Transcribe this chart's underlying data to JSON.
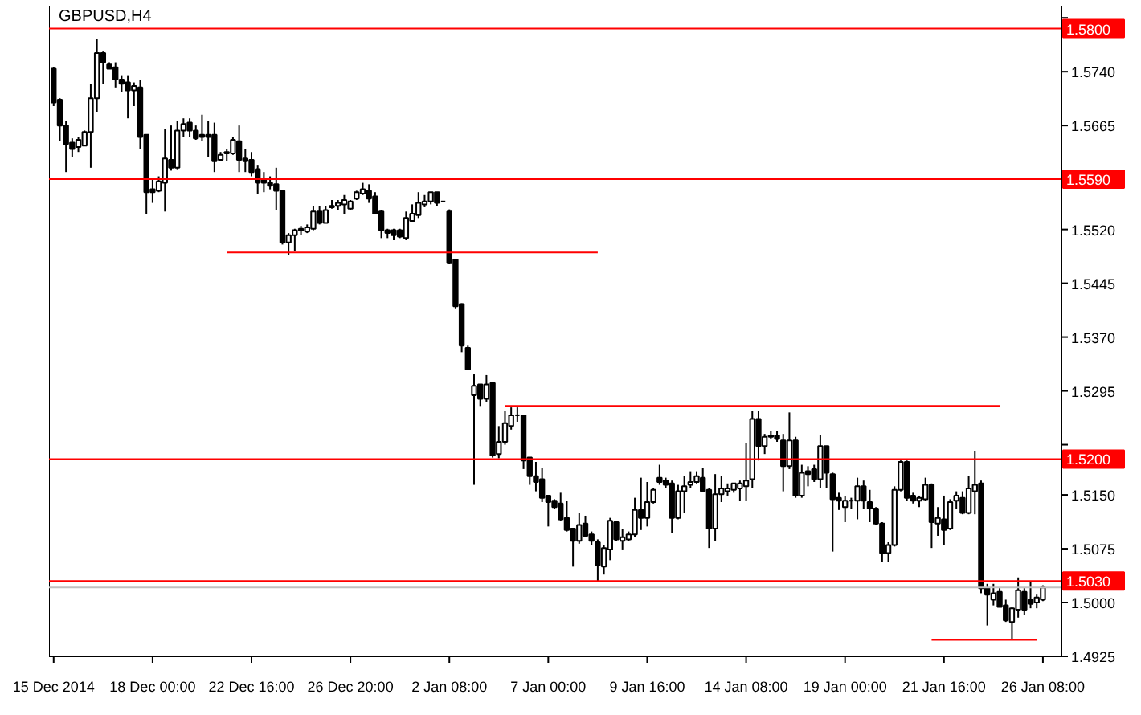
{
  "chart_data": {
    "type": "candlestick",
    "title": "GBPUSD,H4",
    "categories": [
      "15 Dec 2014",
      null,
      null,
      null,
      null,
      null,
      null,
      null,
      null,
      null,
      null,
      null,
      null,
      null,
      null,
      null,
      "18 Dec 00:00",
      null,
      null,
      null,
      null,
      null,
      null,
      null,
      null,
      null,
      null,
      null,
      null,
      null,
      null,
      null,
      "22 Dec 16:00",
      null,
      null,
      null,
      null,
      null,
      null,
      null,
      null,
      null,
      null,
      null,
      null,
      null,
      null,
      null,
      "26 Dec 20:00",
      null,
      null,
      null,
      null,
      null,
      null,
      null,
      null,
      null,
      null,
      null,
      null,
      null,
      null,
      null,
      "2 Jan 08:00",
      null,
      null,
      null,
      null,
      null,
      null,
      null,
      null,
      null,
      null,
      null,
      null,
      null,
      null,
      null,
      "7 Jan 00:00",
      null,
      null,
      null,
      null,
      null,
      null,
      null,
      null,
      null,
      null,
      null,
      null,
      null,
      null,
      null,
      "9 Jan 16:00",
      null,
      null,
      null,
      null,
      null,
      null,
      null,
      null,
      null,
      null,
      null,
      null,
      null,
      null,
      null,
      "14 Jan 08:00",
      null,
      null,
      null,
      null,
      null,
      null,
      null,
      null,
      null,
      null,
      null,
      null,
      null,
      null,
      null,
      "19 Jan 00:00",
      null,
      null,
      null,
      null,
      null,
      null,
      null,
      null,
      null,
      null,
      null,
      null,
      null,
      null,
      null,
      "21 Jan 16:00",
      null,
      null,
      null,
      null,
      null,
      null,
      null,
      null,
      null,
      null,
      null,
      null,
      null,
      null,
      null,
      "26 Jan 08:00"
    ],
    "ylim": [
      1.4925,
      1.5832
    ],
    "yticks": [
      {
        "value": 1.5815,
        "label": null
      },
      {
        "value": 1.574,
        "label": "1.5740"
      },
      {
        "value": 1.5665,
        "label": "1.5665"
      },
      {
        "value": 1.552,
        "label": "1.5520"
      },
      {
        "value": 1.5445,
        "label": "1.5445"
      },
      {
        "value": 1.537,
        "label": "1.5370"
      },
      {
        "value": 1.5295,
        "label": "1.5295"
      },
      {
        "value": 1.522,
        "label": null
      },
      {
        "value": 1.515,
        "label": "1.5150"
      },
      {
        "value": 1.5075,
        "label": "1.5075"
      },
      {
        "value": 1.5,
        "label": "1.5000"
      },
      {
        "value": 1.4925,
        "label": "1.4925"
      }
    ],
    "ohlc": [
      [
        1.5744,
        1.5746,
        1.5692,
        1.5697
      ],
      [
        1.5701,
        1.5703,
        1.5643,
        1.5665
      ],
      [
        1.5665,
        1.5671,
        1.56,
        1.5639
      ],
      [
        1.5641,
        1.5647,
        1.5621,
        1.5632
      ],
      [
        1.5635,
        1.5649,
        1.5628,
        1.5645
      ],
      [
        1.5637,
        1.5658,
        1.5637,
        1.5656
      ],
      [
        1.5656,
        1.5723,
        1.5606,
        1.5703
      ],
      [
        1.5703,
        1.5785,
        1.5684,
        1.5766
      ],
      [
        1.5766,
        1.5768,
        1.5723,
        1.5753
      ],
      [
        1.575,
        1.5753,
        1.5744,
        1.5744
      ],
      [
        1.5746,
        1.5753,
        1.5718,
        1.5729
      ],
      [
        1.5729,
        1.5735,
        1.5712,
        1.5723
      ],
      [
        1.5725,
        1.5735,
        1.5675,
        1.5714
      ],
      [
        1.5714,
        1.5725,
        1.5692,
        1.572
      ],
      [
        1.5718,
        1.5729,
        1.5632,
        1.5649
      ],
      [
        1.5652,
        1.5652,
        1.5542,
        1.5572
      ],
      [
        1.5576,
        1.5589,
        1.5557,
        1.5572
      ],
      [
        1.5574,
        1.5594,
        1.5572,
        1.5587
      ],
      [
        1.5585,
        1.566,
        1.5545,
        1.5619
      ],
      [
        1.5617,
        1.5665,
        1.5602,
        1.5606
      ],
      [
        1.5606,
        1.5671,
        1.5604,
        1.5658
      ],
      [
        1.5658,
        1.5675,
        1.5649,
        1.5667
      ],
      [
        1.5669,
        1.5675,
        1.5649,
        1.5658
      ],
      [
        1.5658,
        1.5665,
        1.5645,
        1.5647
      ],
      [
        1.5652,
        1.568,
        1.5643,
        1.5649
      ],
      [
        1.5652,
        1.5671,
        1.5621,
        1.5649
      ],
      [
        1.5652,
        1.5669,
        1.56,
        1.5615
      ],
      [
        1.5617,
        1.5628,
        1.5615,
        1.5624
      ],
      [
        1.5626,
        1.5632,
        1.5615,
        1.5628
      ],
      [
        1.5626,
        1.5649,
        1.5624,
        1.5645
      ],
      [
        1.5643,
        1.5665,
        1.56,
        1.5617
      ],
      [
        1.5619,
        1.5632,
        1.56,
        1.5615
      ],
      [
        1.5617,
        1.5628,
        1.5594,
        1.56
      ],
      [
        1.5604,
        1.5609,
        1.557,
        1.5585
      ],
      [
        1.5589,
        1.56,
        1.5572,
        1.5585
      ],
      [
        1.5585,
        1.5594,
        1.5576,
        1.5581
      ],
      [
        1.5583,
        1.5606,
        1.5547,
        1.5574
      ],
      [
        1.5574,
        1.5574,
        1.5499,
        1.5502
      ],
      [
        1.5502,
        1.5515,
        1.5484,
        1.5512
      ],
      [
        1.5512,
        1.5521,
        1.549,
        1.5519
      ],
      [
        1.5519,
        1.5525,
        1.5512,
        1.5521
      ],
      [
        1.5517,
        1.5527,
        1.5515,
        1.5523
      ],
      [
        1.5521,
        1.5553,
        1.5519,
        1.5545
      ],
      [
        1.5545,
        1.5553,
        1.5527,
        1.5529
      ],
      [
        1.5529,
        1.5553,
        1.5529,
        1.5547
      ],
      [
        1.5551,
        1.5561,
        1.5549,
        1.5553
      ],
      [
        1.5553,
        1.5561,
        1.5547,
        1.5557
      ],
      [
        1.5555,
        1.5568,
        1.5542,
        1.5561
      ],
      [
        1.5549,
        1.5561,
        1.5547,
        1.5559
      ],
      [
        1.5563,
        1.5574,
        1.5561,
        1.5572
      ],
      [
        1.557,
        1.5585,
        1.5568,
        1.5576
      ],
      [
        1.5574,
        1.5583,
        1.5557,
        1.5563
      ],
      [
        1.5566,
        1.5572,
        1.5542,
        1.5542
      ],
      [
        1.5545,
        1.5547,
        1.5508,
        1.5519
      ],
      [
        1.5519,
        1.5521,
        1.5508,
        1.5515
      ],
      [
        1.5519,
        1.5521,
        1.5505,
        1.5512
      ],
      [
        1.5519,
        1.5521,
        1.5508,
        1.551
      ],
      [
        1.5508,
        1.5545,
        1.5505,
        1.5536
      ],
      [
        1.5532,
        1.5555,
        1.5532,
        1.5542
      ],
      [
        1.554,
        1.5572,
        1.5536,
        1.5557
      ],
      [
        1.5555,
        1.5568,
        1.5551,
        1.5559
      ],
      [
        1.5559,
        1.5572,
        1.5555,
        1.5572
      ],
      [
        1.5572,
        1.5572,
        1.5553,
        1.5557
      ],
      [
        1.5559,
        1.5559,
        1.5559,
        1.5559
      ],
      [
        1.5545,
        1.5548,
        1.5472,
        1.5474
      ],
      [
        1.5478,
        1.5478,
        1.5409,
        1.5413
      ],
      [
        1.5416,
        1.5417,
        1.5349,
        1.5358
      ],
      [
        1.5355,
        1.5358,
        1.5325,
        1.5325
      ],
      [
        1.5289,
        1.5318,
        1.5164,
        1.5302
      ],
      [
        1.5304,
        1.5304,
        1.5274,
        1.5284
      ],
      [
        1.5284,
        1.5317,
        1.528,
        1.5304
      ],
      [
        1.5306,
        1.5306,
        1.5202,
        1.5205
      ],
      [
        1.5207,
        1.5246,
        1.5201,
        1.5224
      ],
      [
        1.5224,
        1.5267,
        1.522,
        1.525
      ],
      [
        1.5246,
        1.5272,
        1.5241,
        1.5261
      ],
      [
        1.5261,
        1.5272,
        1.5252,
        1.5261
      ],
      [
        1.5261,
        1.5261,
        1.5186,
        1.5198
      ],
      [
        1.5202,
        1.5202,
        1.5164,
        1.5176
      ],
      [
        1.5176,
        1.5196,
        1.5155,
        1.5168
      ],
      [
        1.5172,
        1.5188,
        1.514,
        1.5146
      ],
      [
        1.5149,
        1.5149,
        1.5106,
        1.514
      ],
      [
        1.5142,
        1.5144,
        1.5131,
        1.5133
      ],
      [
        1.5138,
        1.5153,
        1.5114,
        1.5116
      ],
      [
        1.5118,
        1.5142,
        1.5099,
        1.5101
      ],
      [
        1.5103,
        1.5103,
        1.505,
        1.5086
      ],
      [
        1.5086,
        1.5125,
        1.5082,
        1.5108
      ],
      [
        1.511,
        1.5121,
        1.5091,
        1.5093
      ],
      [
        1.5095,
        1.5099,
        1.508,
        1.5086
      ],
      [
        1.5084,
        1.5088,
        1.503,
        1.5052
      ],
      [
        1.505,
        1.508,
        1.5039,
        1.5076
      ],
      [
        1.5074,
        1.5118,
        1.5059,
        1.5114
      ],
      [
        1.5112,
        1.5114,
        1.5086,
        1.5088
      ],
      [
        1.5086,
        1.5103,
        1.5074,
        1.5091
      ],
      [
        1.5088,
        1.5099,
        1.5086,
        1.5095
      ],
      [
        1.5095,
        1.5146,
        1.5091,
        1.5129
      ],
      [
        1.5129,
        1.5174,
        1.5101,
        1.5118
      ],
      [
        1.5118,
        1.5168,
        1.5106,
        1.514
      ],
      [
        1.514,
        1.5159,
        1.5138,
        1.5157
      ],
      [
        1.5174,
        1.5192,
        1.5164,
        1.5168
      ],
      [
        1.517,
        1.5174,
        1.5159,
        1.5164
      ],
      [
        1.5166,
        1.517,
        1.5097,
        1.5118
      ],
      [
        1.5118,
        1.5164,
        1.5116,
        1.5155
      ],
      [
        1.5155,
        1.5176,
        1.5125,
        1.5162
      ],
      [
        1.5164,
        1.5183,
        1.5159,
        1.5168
      ],
      [
        1.5168,
        1.5183,
        1.5166,
        1.5176
      ],
      [
        1.5174,
        1.5188,
        1.5155,
        1.5155
      ],
      [
        1.5157,
        1.5159,
        1.5076,
        1.5103
      ],
      [
        1.5103,
        1.5179,
        1.5086,
        1.5151
      ],
      [
        1.5151,
        1.5176,
        1.514,
        1.5159
      ],
      [
        1.5155,
        1.5166,
        1.5149,
        1.5159
      ],
      [
        1.5157,
        1.5166,
        1.5153,
        1.5166
      ],
      [
        1.5159,
        1.517,
        1.5142,
        1.5166
      ],
      [
        1.5162,
        1.5222,
        1.5142,
        1.517
      ],
      [
        1.5172,
        1.5267,
        1.5159,
        1.5256
      ],
      [
        1.5256,
        1.5267,
        1.5198,
        1.5218
      ],
      [
        1.5218,
        1.5235,
        1.5207,
        1.5231
      ],
      [
        1.5231,
        1.5239,
        1.5228,
        1.5233
      ],
      [
        1.5233,
        1.5239,
        1.5224,
        1.5228
      ],
      [
        1.5226,
        1.5235,
        1.5155,
        1.519
      ],
      [
        1.519,
        1.5265,
        1.5186,
        1.5226
      ],
      [
        1.5226,
        1.5231,
        1.5146,
        1.5149
      ],
      [
        1.5149,
        1.5192,
        1.5146,
        1.5181
      ],
      [
        1.5183,
        1.519,
        1.5162,
        1.5179
      ],
      [
        1.5186,
        1.5192,
        1.5168,
        1.5172
      ],
      [
        1.5172,
        1.5233,
        1.5159,
        1.5218
      ],
      [
        1.5218,
        1.5218,
        1.5159,
        1.5181
      ],
      [
        1.5179,
        1.5181,
        1.5071,
        1.5144
      ],
      [
        1.5146,
        1.5153,
        1.5129,
        1.5142
      ],
      [
        1.5133,
        1.5149,
        1.5112,
        1.5142
      ],
      [
        1.5142,
        1.5146,
        1.5131,
        1.5142
      ],
      [
        1.5142,
        1.5174,
        1.5116,
        1.5162
      ],
      [
        1.5162,
        1.517,
        1.5131,
        1.5142
      ],
      [
        1.514,
        1.5157,
        1.5112,
        1.5131
      ],
      [
        1.5131,
        1.5133,
        1.5108,
        1.511
      ],
      [
        1.511,
        1.5112,
        1.5056,
        1.5069
      ],
      [
        1.5069,
        1.5084,
        1.5056,
        1.508
      ],
      [
        1.508,
        1.5162,
        1.5078,
        1.5157
      ],
      [
        1.5157,
        1.5198,
        1.5155,
        1.5196
      ],
      [
        1.5196,
        1.5198,
        1.5142,
        1.5146
      ],
      [
        1.5149,
        1.5153,
        1.5138,
        1.5142
      ],
      [
        1.5142,
        1.5149,
        1.5133,
        1.5146
      ],
      [
        1.5144,
        1.5174,
        1.5142,
        1.5164
      ],
      [
        1.5164,
        1.5166,
        1.5076,
        1.5112
      ],
      [
        1.511,
        1.5133,
        1.5093,
        1.5118
      ],
      [
        1.5116,
        1.5149,
        1.508,
        1.5101
      ],
      [
        1.5103,
        1.5144,
        1.5101,
        1.514
      ],
      [
        1.5142,
        1.5155,
        1.5131,
        1.5149
      ],
      [
        1.5146,
        1.5155,
        1.5123,
        1.5125
      ],
      [
        1.5125,
        1.5176,
        1.5123,
        1.5159
      ],
      [
        1.5155,
        1.5211,
        1.5123,
        1.5164
      ],
      [
        1.5166,
        1.517,
        1.5013,
        1.502
      ],
      [
        1.502,
        1.5026,
        1.4968,
        1.5011
      ],
      [
        1.5004,
        1.5026,
        1.4996,
        1.5013
      ],
      [
        1.5015,
        1.502,
        1.4994,
        1.4994
      ],
      [
        1.4996,
        1.5004,
        1.4973,
        1.4975
      ],
      [
        1.4973,
        1.4994,
        1.4949,
        1.4992
      ],
      [
        1.499,
        1.5035,
        1.4979,
        1.5017
      ],
      [
        1.5015,
        1.502,
        1.4983,
        1.499
      ],
      [
        1.5004,
        1.5028,
        1.4992,
        1.4998
      ],
      [
        1.5,
        1.5011,
        1.4992,
        1.5007
      ],
      [
        1.5004,
        1.5024,
        1.5002,
        1.5021
      ]
    ],
    "series": [
      {
        "type": "line",
        "color": "#ff0000",
        "values": [
          null,
          null,
          null,
          null,
          null,
          null,
          null,
          null,
          null,
          null,
          null,
          null,
          null,
          null,
          null,
          null,
          null,
          null,
          null,
          null,
          null,
          null,
          null,
          null,
          null,
          null,
          null,
          null,
          1.5488,
          1.5488,
          1.5488,
          1.5488,
          1.5488,
          1.5488,
          1.5488,
          1.5488,
          1.5488,
          1.5488,
          1.5488,
          1.5488,
          1.5488,
          1.5488,
          1.5488,
          1.5488,
          1.5488,
          1.5488,
          1.5488,
          1.5488,
          1.5488,
          1.5488,
          1.5488,
          1.5488,
          1.5488,
          1.5488,
          1.5488,
          1.5488,
          1.5488,
          1.5488,
          1.5488,
          1.5488,
          1.5488,
          1.5488,
          1.5488,
          1.5488,
          1.5488,
          1.5488,
          1.5488,
          1.5488,
          1.5488,
          1.5488,
          1.5488,
          1.5488,
          1.5488,
          1.5488,
          1.5488,
          1.5488,
          1.5488,
          1.5488,
          1.5488,
          1.5488,
          1.5488,
          1.5488,
          1.5488,
          1.5488,
          1.5488,
          1.5488,
          1.5488,
          1.5488,
          1.5488,
          null,
          null,
          null,
          null,
          null,
          null,
          null,
          null,
          null,
          null,
          null,
          null,
          null,
          null,
          null,
          null,
          null,
          null,
          null,
          null,
          null,
          null,
          null,
          null,
          null,
          null,
          null,
          null,
          null,
          null,
          null,
          null,
          null,
          null,
          null,
          null,
          null,
          null,
          null,
          null,
          null,
          null,
          null,
          null,
          null,
          null,
          null,
          null,
          null,
          null,
          null,
          null,
          null,
          null,
          null,
          null,
          null,
          null,
          null,
          null,
          null,
          null,
          null,
          null,
          null,
          null,
          null,
          null,
          null,
          null,
          null,
          null
        ]
      },
      {
        "type": "line",
        "color": "#ff0000",
        "values": [
          null,
          null,
          null,
          null,
          null,
          null,
          null,
          null,
          null,
          null,
          null,
          null,
          null,
          null,
          null,
          null,
          null,
          null,
          null,
          null,
          null,
          null,
          null,
          null,
          null,
          null,
          null,
          null,
          null,
          null,
          null,
          null,
          null,
          null,
          null,
          null,
          null,
          null,
          null,
          null,
          null,
          null,
          null,
          null,
          null,
          null,
          null,
          null,
          null,
          null,
          null,
          null,
          null,
          null,
          null,
          null,
          null,
          null,
          null,
          null,
          null,
          null,
          null,
          null,
          null,
          null,
          null,
          null,
          null,
          null,
          null,
          null,
          null,
          1.5274,
          1.5274,
          1.5274,
          1.5274,
          1.5274,
          1.5274,
          1.5274,
          1.5274,
          1.5274,
          1.5274,
          1.5274,
          1.5274,
          1.5274,
          1.5274,
          1.5274,
          1.5274,
          1.5274,
          1.5274,
          1.5274,
          1.5274,
          1.5274,
          1.5274,
          1.5274,
          1.5274,
          1.5274,
          1.5274,
          1.5274,
          1.5274,
          1.5274,
          1.5274,
          1.5274,
          1.5274,
          1.5274,
          1.5274,
          1.5274,
          1.5274,
          1.5274,
          1.5274,
          1.5274,
          1.5274,
          1.5274,
          1.5274,
          1.5274,
          1.5274,
          1.5274,
          1.5274,
          1.5274,
          1.5274,
          1.5274,
          1.5274,
          1.5274,
          1.5274,
          1.5274,
          1.5274,
          1.5274,
          1.5274,
          1.5274,
          1.5274,
          1.5274,
          1.5274,
          1.5274,
          1.5274,
          1.5274,
          1.5274,
          1.5274,
          1.5274,
          1.5274,
          1.5274,
          1.5274,
          1.5274,
          1.5274,
          1.5274,
          1.5274,
          1.5274,
          1.5274,
          1.5274,
          1.5274,
          1.5274,
          1.5274,
          1.5274,
          1.5274,
          null,
          null,
          null,
          null,
          null,
          null,
          null
        ]
      },
      {
        "type": "line",
        "color": "#ff0000",
        "values": [
          null,
          null,
          null,
          null,
          null,
          null,
          null,
          null,
          null,
          null,
          null,
          null,
          null,
          null,
          null,
          null,
          null,
          null,
          null,
          null,
          null,
          null,
          null,
          null,
          null,
          null,
          null,
          null,
          null,
          null,
          null,
          null,
          null,
          null,
          null,
          null,
          null,
          null,
          null,
          null,
          null,
          null,
          null,
          null,
          null,
          null,
          null,
          null,
          null,
          null,
          null,
          null,
          null,
          null,
          null,
          null,
          null,
          null,
          null,
          null,
          null,
          null,
          null,
          null,
          null,
          null,
          null,
          null,
          null,
          null,
          null,
          null,
          null,
          null,
          null,
          null,
          null,
          null,
          null,
          null,
          null,
          null,
          null,
          null,
          null,
          null,
          null,
          null,
          null,
          null,
          null,
          null,
          null,
          null,
          null,
          null,
          null,
          null,
          null,
          null,
          null,
          null,
          null,
          null,
          null,
          null,
          null,
          null,
          null,
          null,
          null,
          null,
          null,
          null,
          null,
          null,
          null,
          null,
          null,
          null,
          null,
          null,
          null,
          null,
          null,
          null,
          null,
          null,
          null,
          null,
          null,
          null,
          null,
          null,
          null,
          null,
          null,
          null,
          null,
          null,
          null,
          null,
          1.4948,
          1.4948,
          1.4948,
          1.4948,
          1.4948,
          1.4948,
          1.4948,
          1.4948,
          1.4948,
          1.4948,
          1.4948,
          1.4948,
          1.4948,
          1.4948,
          1.4948,
          1.4948,
          1.4948,
          1.4948,
          null
        ]
      }
    ],
    "ref_lines": [
      {
        "axis": "y",
        "value": 1.58,
        "label": "1.5800",
        "color": "#ff0000"
      },
      {
        "axis": "y",
        "value": 1.559,
        "label": "1.5590",
        "color": "#ff0000"
      },
      {
        "axis": "y",
        "value": 1.52,
        "label": "1.5200",
        "color": "#ff0000"
      },
      {
        "axis": "y",
        "value": 1.503,
        "label": "1.5030",
        "color": "#ff0000"
      },
      {
        "axis": "y",
        "value": 1.5021,
        "color": "#c0c0c0"
      }
    ]
  }
}
